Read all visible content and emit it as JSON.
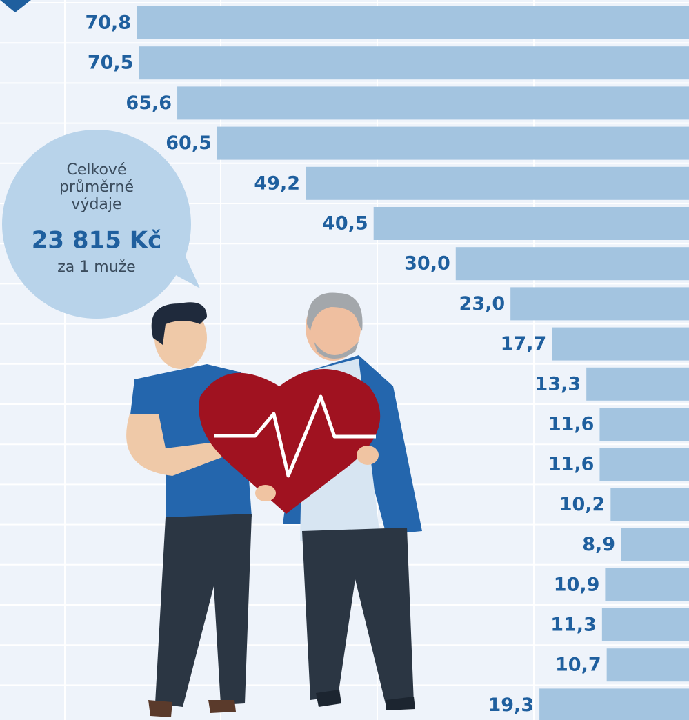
{
  "annotation": [
    "Celkové",
    "průměrné",
    "výdaje",
    "23 815 Kč",
    "za 1 muže"
  ],
  "chart_data": {
    "type": "bar",
    "orientation": "horizontal",
    "reversed": true,
    "color": "#a3c4e0",
    "values": [
      70.8,
      70.5,
      65.6,
      60.5,
      49.2,
      40.5,
      30.0,
      23.0,
      17.7,
      13.3,
      11.6,
      11.6,
      10.2,
      8.9,
      10.9,
      11.3,
      10.7,
      19.3
    ],
    "value_labels": [
      "70,8",
      "70,5",
      "65,6",
      "60,5",
      "49,2",
      "40,5",
      "30,0",
      "23,0",
      "17,7",
      "13,3",
      "11,6",
      "11,6",
      "10,2",
      "8,9",
      "10,9",
      "11,3",
      "10,7",
      "19,3"
    ],
    "xlim": [
      0,
      88
    ]
  }
}
